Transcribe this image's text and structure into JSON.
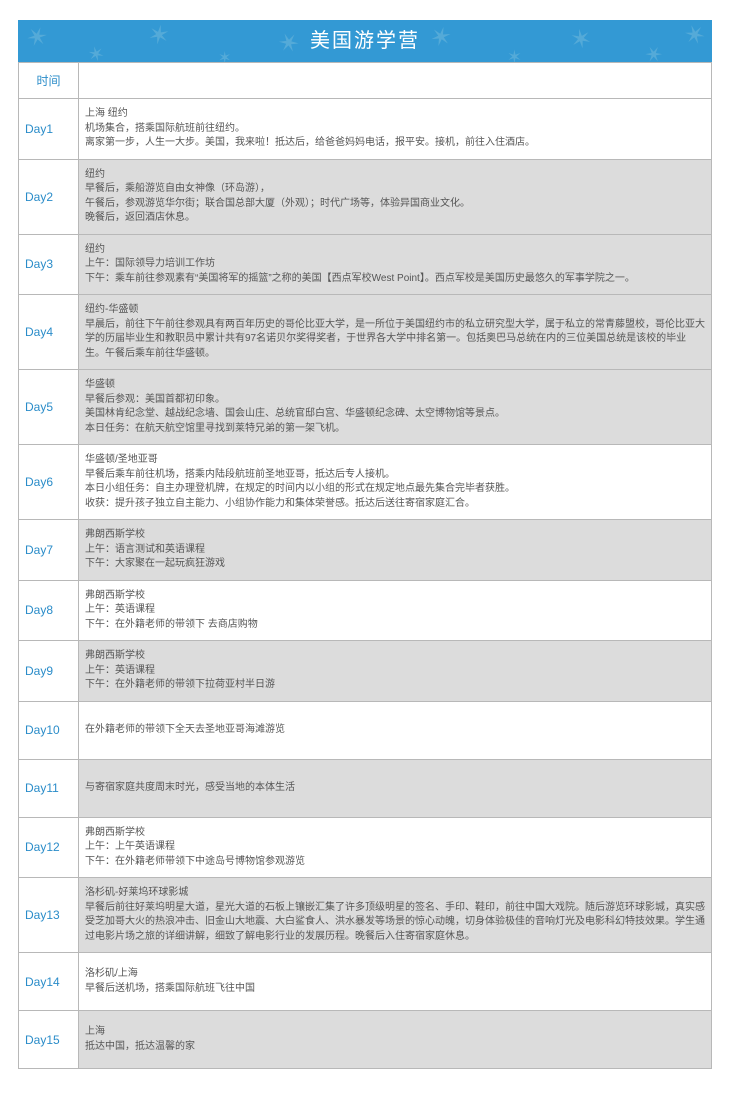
{
  "banner": {
    "title": "美国游学营",
    "bg_color": "#3399d4",
    "deco_color": "#6bb6db",
    "title_color": "#ffffff",
    "title_fontsize": 20
  },
  "header": {
    "time_label": "时间",
    "time_color": "#2a8cc9"
  },
  "colors": {
    "border": "#b8b8b8",
    "day_text": "#2a8cc9",
    "desc_text": "#555555",
    "shade_bg": "#dcdcdc",
    "plain_bg": "#ffffff"
  },
  "fontsize": {
    "day": 12,
    "desc": 10
  },
  "rows": [
    {
      "day": "Day1",
      "shade": false,
      "desc": "上海 纽约\n机场集合，搭乘国际航班前往纽约。\n离家第一步，人生一大步。美国，我来啦！抵达后，给爸爸妈妈电话，报平安。接机，前往入住酒店。"
    },
    {
      "day": "Day2",
      "shade": true,
      "desc": "纽约\n早餐后，乘船游览自由女神像（环岛游），\n午餐后，参观游览华尔街；联合国总部大厦（外观）；时代广场等，体验异国商业文化。\n晚餐后，返回酒店休息。"
    },
    {
      "day": "Day3",
      "shade": true,
      "desc": "纽约\n上午：国际领导力培训工作坊\n下午：乘车前往参观素有“美国将军的摇篮”之称的美国【西点军校West Point】。西点军校是美国历史最悠久的军事学院之一。"
    },
    {
      "day": "Day4",
      "shade": true,
      "desc": "纽约-华盛顿\n早晨后，前往下午前往参观具有两百年历史的哥伦比亚大学，是一所位于美国纽约市的私立研究型大学，属于私立的常青藤盟校，哥伦比亚大学的历届毕业生和教职员中累计共有97名诺贝尔奖得奖者，于世界各大学中排名第一。包括奥巴马总统在内的三位美国总统是该校的毕业生。午餐后乘车前往华盛顿。"
    },
    {
      "day": "Day5",
      "shade": true,
      "desc": "华盛顿\n早餐后参观：美国首都初印象。\n美国林肯纪念堂、越战纪念墙、国会山庄、总统官邸白宫、华盛顿纪念碑、太空博物馆等景点。\n本日任务：在航天航空馆里寻找到莱特兄弟的第一架飞机。"
    },
    {
      "day": "Day6",
      "shade": false,
      "desc": "华盛顿/圣地亚哥\n早餐后乘车前往机场，搭乘内陆段航班前圣地亚哥，抵达后专人接机。\n本日小组任务：自主办理登机牌，在规定的时间内以小组的形式在规定地点最先集合完毕者获胜。\n收获：提升孩子独立自主能力、小组协作能力和集体荣誉感。抵达后送往寄宿家庭汇合。"
    },
    {
      "day": "Day7",
      "shade": true,
      "desc": "弗朗西斯学校\n上午：语言测试和英语课程\n下午：大家聚在一起玩疯狂游戏"
    },
    {
      "day": "Day8",
      "shade": false,
      "desc": "弗朗西斯学校\n上午：英语课程\n下午：在外籍老师的带领下 去商店购物"
    },
    {
      "day": "Day9",
      "shade": true,
      "desc": "弗朗西斯学校\n上午：英语课程\n下午：在外籍老师的带领下拉荷亚村半日游"
    },
    {
      "day": "Day10",
      "shade": false,
      "tall": true,
      "desc": "在外籍老师的带领下全天去圣地亚哥海滩游览"
    },
    {
      "day": "Day11",
      "shade": true,
      "tall": true,
      "desc": "与寄宿家庭共度周末时光，感受当地的本体生活"
    },
    {
      "day": "Day12",
      "shade": false,
      "desc": "弗朗西斯学校\n上午：上午英语课程\n下午：在外籍老师带领下中途岛号博物馆参观游览"
    },
    {
      "day": "Day13",
      "shade": true,
      "desc": "洛杉矶-好莱坞环球影城\n早餐后前往好莱坞明星大道，星光大道的石板上镶嵌汇集了许多顶级明星的签名、手印、鞋印，前往中国大戏院。随后游览环球影城，真实感受芝加哥大火的热浪冲击、旧金山大地震、大白鲨食人、洪水暴发等场景的惊心动魄，切身体验极佳的音响灯光及电影科幻特技效果。学生通过电影片场之旅的详细讲解，细致了解电影行业的发展历程。晚餐后入住寄宿家庭休息。"
    },
    {
      "day": "Day14",
      "shade": false,
      "tall": true,
      "desc": "洛杉矶/上海\n早餐后送机场，搭乘国际航班飞往中国"
    },
    {
      "day": "Day15",
      "shade": true,
      "tall": true,
      "desc": "上海\n抵达中国，抵达温馨的家"
    }
  ]
}
